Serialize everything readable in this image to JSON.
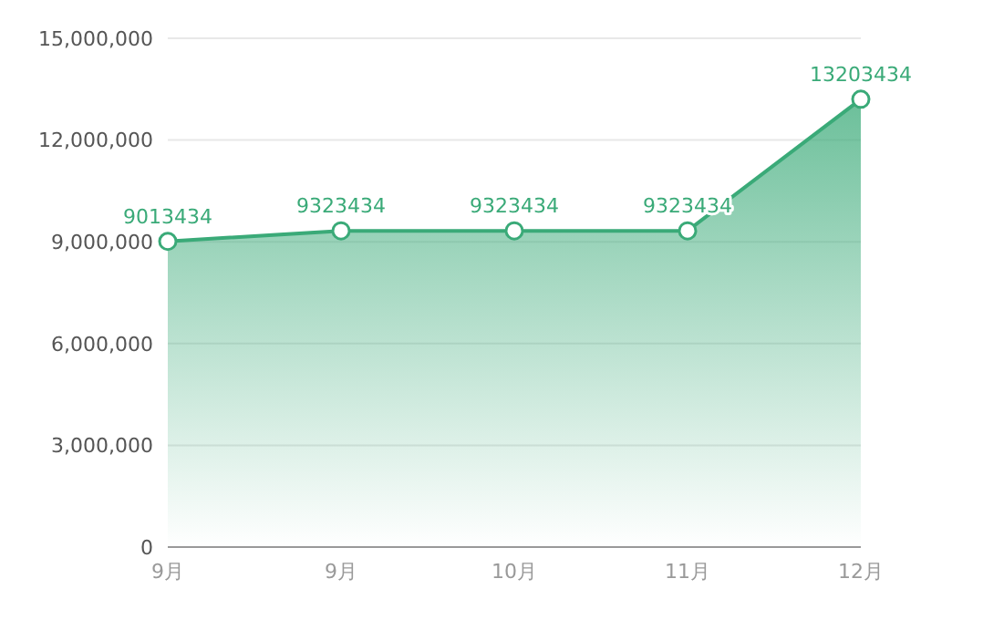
{
  "chart_data": {
    "type": "area",
    "categories": [
      "9月",
      "9月",
      "10月",
      "11月",
      "12月"
    ],
    "values": [
      9013434,
      9323434,
      9323434,
      9323434,
      13203434
    ],
    "color": "#3aaa78",
    "ylim": [
      0,
      15000000
    ],
    "yticks": [
      {
        "value": 0,
        "label": "0"
      },
      {
        "value": 3000000,
        "label": "3,000,000"
      },
      {
        "value": 6000000,
        "label": "6,000,000"
      },
      {
        "value": 9000000,
        "label": "9,000,000"
      },
      {
        "value": 12000000,
        "label": "12,000,000"
      },
      {
        "value": 15000000,
        "label": "15,000,000"
      }
    ],
    "grid": "y",
    "marker": "circle",
    "data_labels": true
  }
}
